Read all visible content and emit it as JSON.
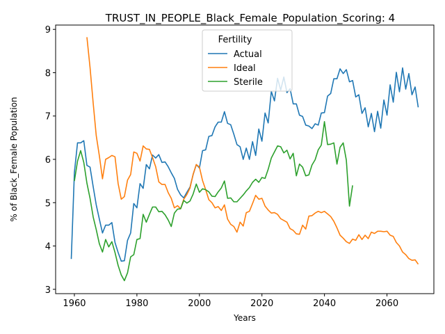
{
  "chart_data": {
    "type": "line",
    "title": "TRUST_IN_PEOPLE_Black_Female_Population_Scoring: 4",
    "xlabel": "Years",
    "ylabel": "% of Black_Female Population",
    "xlim": [
      1954,
      2075
    ],
    "ylim": [
      2.9,
      9.1
    ],
    "xticks": [
      1960,
      1980,
      2000,
      2020,
      2040,
      2060
    ],
    "yticks": [
      3,
      4,
      5,
      6,
      7,
      8,
      9
    ],
    "grid": false,
    "legend": {
      "title": "Fertility",
      "placement": "upper center"
    },
    "series": [
      {
        "name": "Actual",
        "color": "#1f77b4",
        "x": [
          1959,
          1960,
          1961,
          1962,
          1963,
          1964,
          1965,
          1966,
          1967,
          1968,
          1969,
          1970,
          1971,
          1972,
          1973,
          1974,
          1975,
          1976,
          1977,
          1978,
          1979,
          1980,
          1981,
          1982,
          1983,
          1984,
          1985,
          1986,
          1987,
          1988,
          1989,
          1990,
          1991,
          1992,
          1993,
          1994,
          1995,
          1996,
          1997,
          1998,
          1999,
          2000,
          2001,
          2002,
          2003,
          2004,
          2005,
          2006,
          2007,
          2008,
          2009,
          2010,
          2011,
          2012,
          2013,
          2014,
          2015,
          2016,
          2017,
          2018,
          2019,
          2020,
          2021,
          2022,
          2023,
          2024,
          2025,
          2026,
          2027,
          2028,
          2029,
          2030,
          2031,
          2032,
          2033,
          2034,
          2035,
          2036,
          2037,
          2038,
          2039,
          2040,
          2041,
          2042,
          2043,
          2044,
          2045,
          2046,
          2047,
          2048,
          2049,
          2050,
          2051,
          2052,
          2053,
          2054,
          2055,
          2056,
          2057,
          2058,
          2059,
          2060,
          2061,
          2062,
          2063,
          2064,
          2065,
          2066,
          2067,
          2068,
          2069,
          2070
        ],
        "y": [
          3.7,
          5.7,
          6.38,
          6.38,
          6.43,
          5.86,
          5.82,
          5.37,
          4.95,
          4.62,
          4.3,
          4.48,
          4.48,
          4.54,
          4.08,
          3.85,
          3.65,
          3.66,
          4.13,
          4.3,
          4.98,
          4.88,
          5.44,
          5.33,
          5.88,
          5.78,
          6.1,
          6.03,
          6.11,
          5.93,
          5.94,
          5.83,
          5.69,
          5.56,
          5.31,
          5.18,
          5.11,
          5.24,
          5.36,
          5.65,
          5.88,
          5.8,
          6.2,
          6.22,
          6.53,
          6.55,
          6.75,
          6.86,
          6.86,
          7.1,
          6.83,
          6.8,
          6.58,
          6.34,
          6.29,
          6.0,
          6.26,
          6.0,
          6.41,
          6.09,
          6.7,
          6.42,
          7.07,
          6.84,
          7.57,
          7.35,
          7.87,
          7.6,
          7.9,
          7.54,
          7.63,
          7.28,
          7.28,
          7.02,
          6.99,
          6.79,
          6.77,
          6.71,
          6.82,
          6.79,
          7.07,
          7.08,
          7.46,
          7.52,
          7.86,
          7.86,
          8.09,
          7.98,
          8.07,
          7.79,
          7.82,
          7.44,
          7.49,
          7.06,
          7.19,
          6.75,
          7.06,
          6.64,
          7.11,
          6.72,
          7.37,
          7.02,
          7.72,
          7.32,
          8.01,
          7.56,
          8.11,
          7.62,
          7.98,
          7.49,
          7.67,
          7.2
        ]
      },
      {
        "name": "Ideal",
        "color": "#ff7f0e",
        "x": [
          1964,
          1965,
          1966,
          1967,
          1968,
          1969,
          1970,
          1971,
          1972,
          1973,
          1974,
          1975,
          1976,
          1977,
          1978,
          1979,
          1980,
          1981,
          1982,
          1983,
          1984,
          1985,
          1986,
          1987,
          1988,
          1989,
          1990,
          1991,
          1992,
          1993,
          1994,
          1995,
          1996,
          1997,
          1998,
          1999,
          2000,
          2001,
          2002,
          2003,
          2004,
          2005,
          2006,
          2007,
          2008,
          2009,
          2010,
          2011,
          2012,
          2013,
          2014,
          2015,
          2016,
          2017,
          2018,
          2019,
          2020,
          2021,
          2022,
          2023,
          2024,
          2025,
          2026,
          2027,
          2028,
          2029,
          2030,
          2031,
          2032,
          2033,
          2034,
          2035,
          2036,
          2037,
          2038,
          2039,
          2040,
          2041,
          2042,
          2043,
          2044,
          2045,
          2046,
          2047,
          2048,
          2049,
          2050,
          2051,
          2052,
          2053,
          2054,
          2055,
          2056,
          2057,
          2058,
          2059,
          2060,
          2061,
          2062,
          2063,
          2064,
          2065,
          2066,
          2067,
          2068,
          2069,
          2070
        ],
        "y": [
          8.82,
          8.12,
          7.3,
          6.55,
          6.08,
          5.55,
          6.0,
          6.04,
          6.09,
          6.06,
          5.44,
          5.08,
          5.14,
          5.52,
          5.65,
          6.17,
          6.14,
          5.96,
          6.31,
          6.24,
          6.23,
          6.04,
          5.83,
          5.48,
          5.42,
          5.42,
          5.23,
          5.1,
          4.88,
          4.93,
          4.86,
          5.08,
          5.19,
          5.34,
          5.66,
          5.88,
          5.82,
          5.51,
          5.3,
          5.07,
          5.0,
          4.88,
          4.91,
          4.82,
          4.95,
          4.62,
          4.5,
          4.45,
          4.32,
          4.55,
          4.46,
          4.77,
          4.8,
          4.98,
          5.17,
          5.08,
          5.1,
          4.92,
          4.83,
          4.76,
          4.77,
          4.73,
          4.63,
          4.59,
          4.55,
          4.4,
          4.36,
          4.28,
          4.27,
          4.48,
          4.39,
          4.69,
          4.7,
          4.76,
          4.8,
          4.77,
          4.8,
          4.74,
          4.68,
          4.57,
          4.42,
          4.25,
          4.18,
          4.1,
          4.06,
          4.16,
          4.13,
          4.26,
          4.15,
          4.25,
          4.17,
          4.32,
          4.29,
          4.34,
          4.34,
          4.33,
          4.34,
          4.25,
          4.22,
          4.08,
          4.0,
          3.86,
          3.8,
          3.71,
          3.67,
          3.68,
          3.58
        ]
      },
      {
        "name": "Sterile",
        "color": "#2ca02c",
        "x": [
          1960,
          1961,
          1962,
          1963,
          1964,
          1965,
          1966,
          1967,
          1968,
          1969,
          1970,
          1971,
          1972,
          1973,
          1974,
          1975,
          1976,
          1977,
          1978,
          1979,
          1980,
          1981,
          1982,
          1983,
          1984,
          1985,
          1986,
          1987,
          1988,
          1989,
          1990,
          1991,
          1992,
          1993,
          1994,
          1995,
          1996,
          1997,
          1998,
          1999,
          2000,
          2001,
          2002,
          2003,
          2004,
          2005,
          2006,
          2007,
          2008,
          2009,
          2010,
          2011,
          2012,
          2013,
          2014,
          2015,
          2016,
          2017,
          2018,
          2019,
          2020,
          2021,
          2022,
          2023,
          2024,
          2025,
          2026,
          2027,
          2028,
          2029,
          2030,
          2031,
          2032,
          2033,
          2034,
          2035,
          2036,
          2037,
          2038,
          2039,
          2040,
          2041,
          2042,
          2043,
          2044,
          2045,
          2046,
          2047,
          2048,
          2049
        ],
        "y": [
          5.5,
          5.96,
          6.2,
          5.93,
          5.45,
          5.1,
          4.67,
          4.38,
          4.05,
          3.86,
          4.15,
          3.98,
          4.1,
          3.85,
          3.55,
          3.33,
          3.2,
          3.38,
          3.75,
          3.8,
          4.15,
          4.17,
          4.73,
          4.55,
          4.73,
          4.9,
          4.9,
          4.79,
          4.8,
          4.72,
          4.6,
          4.45,
          4.76,
          4.85,
          4.86,
          5.05,
          4.99,
          5.04,
          5.2,
          5.43,
          5.24,
          5.32,
          5.3,
          5.25,
          5.15,
          5.14,
          5.25,
          5.34,
          5.5,
          5.1,
          5.11,
          5.02,
          5.02,
          5.1,
          5.18,
          5.27,
          5.35,
          5.47,
          5.54,
          5.47,
          5.58,
          5.56,
          5.77,
          6.03,
          6.17,
          6.31,
          6.29,
          6.15,
          6.21,
          6.01,
          6.14,
          5.62,
          5.89,
          5.82,
          5.62,
          5.64,
          5.87,
          5.99,
          6.22,
          6.33,
          6.87,
          6.34,
          6.35,
          6.38,
          5.89,
          6.28,
          6.38,
          5.98,
          4.92,
          5.4
        ]
      }
    ]
  }
}
